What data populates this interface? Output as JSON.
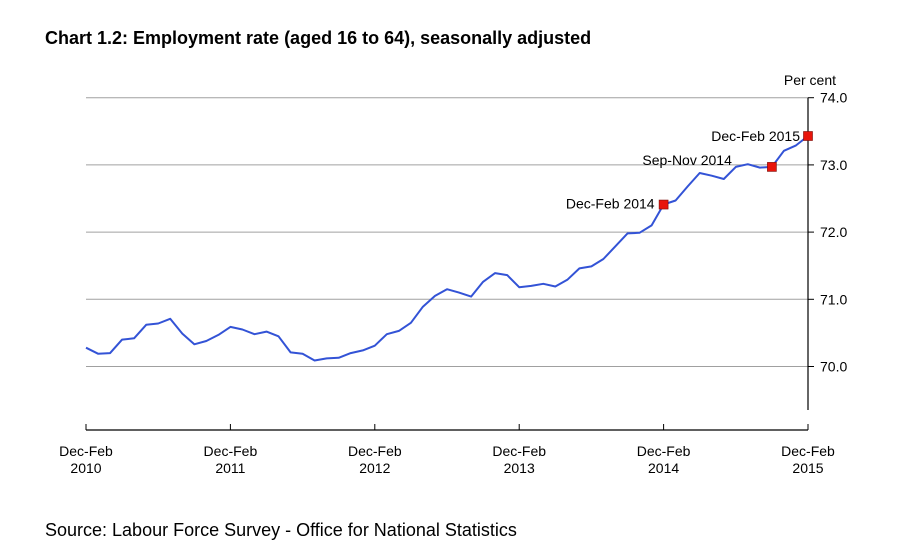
{
  "chart_data": {
    "type": "line",
    "title": "Chart 1.2: Employment rate (aged 16 to 64), seasonally adjusted",
    "ylabel": "Per cent",
    "ylim": [
      69.35,
      74.0
    ],
    "yticks": [
      "70.0",
      "71.0",
      "72.0",
      "73.0",
      "74.0"
    ],
    "x_tick_labels": [
      [
        "Dec-Feb",
        "2010"
      ],
      [
        "Dec-Feb",
        "2011"
      ],
      [
        "Dec-Feb",
        "2012"
      ],
      [
        "Dec-Feb",
        "2013"
      ],
      [
        "Dec-Feb",
        "2014"
      ],
      [
        "Dec-Feb",
        "2015"
      ]
    ],
    "grid": true,
    "series": [
      {
        "color": "#3353d6",
        "values": [
          70.28,
          70.19,
          70.2,
          70.4,
          70.42,
          70.62,
          70.64,
          70.71,
          70.49,
          70.33,
          70.38,
          70.47,
          70.59,
          70.55,
          70.48,
          70.52,
          70.45,
          70.21,
          70.19,
          70.09,
          70.12,
          70.13,
          70.2,
          70.24,
          70.31,
          70.48,
          70.53,
          70.65,
          70.89,
          71.05,
          71.15,
          71.1,
          71.04,
          71.26,
          71.39,
          71.36,
          71.18,
          71.2,
          71.23,
          71.19,
          71.29,
          71.46,
          71.49,
          71.6,
          71.79,
          71.98,
          71.99,
          72.1,
          72.41,
          72.47,
          72.68,
          72.88,
          72.84,
          72.79,
          72.97,
          73.01,
          72.96,
          72.97,
          73.21,
          73.29,
          73.43
        ]
      }
    ],
    "markers": [
      {
        "label": "Dec-Feb 2014",
        "index": 48,
        "value": 72.41
      },
      {
        "label": "Sep-Nov 2014",
        "index": 57,
        "value": 72.97
      },
      {
        "label": "Dec-Feb 2015",
        "index": 60,
        "value": 73.43
      }
    ],
    "marker_color": "#e8150c",
    "gridline_color": "#a0a0a0"
  },
  "source": "Source: Labour Force Survey - Office for National Statistics"
}
